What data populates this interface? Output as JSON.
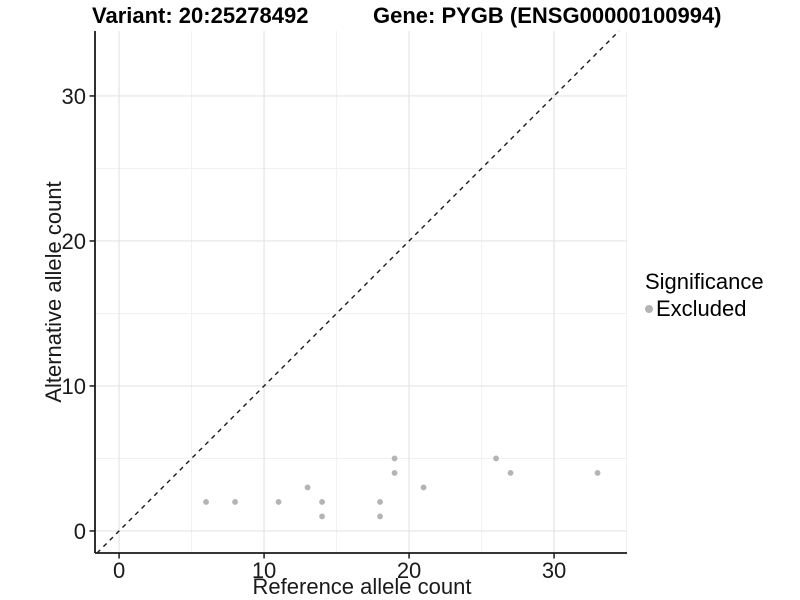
{
  "header": {
    "variant_title": "Variant: 20:25278492",
    "gene_title": "Gene: PYGB (ENSG00000100994)"
  },
  "chart_data": {
    "type": "scatter",
    "title_left": "Variant: 20:25278492",
    "title_right": "Gene: PYGB (ENSG00000100994)",
    "xlabel": "Reference allele count",
    "ylabel": "Alternative allele count",
    "xlim": [
      -1.66,
      35.03
    ],
    "ylim": [
      -1.52,
      34.48
    ],
    "xticks": [
      0,
      10,
      20,
      30
    ],
    "yticks": [
      0,
      10,
      20,
      30
    ],
    "xminor": [
      5,
      15,
      25,
      35
    ],
    "yminor": [
      5,
      15,
      25
    ],
    "grid": true,
    "identity_line": {
      "show": true,
      "style": "dashed",
      "color": "#1a1a1a"
    },
    "series": [
      {
        "name": "Excluded",
        "color": "#b4b4b4",
        "points": [
          [
            6,
            2
          ],
          [
            8,
            2
          ],
          [
            11,
            2
          ],
          [
            13,
            3
          ],
          [
            14,
            1
          ],
          [
            14,
            2
          ],
          [
            18,
            1
          ],
          [
            18,
            2
          ],
          [
            19,
            4
          ],
          [
            19,
            5
          ],
          [
            21,
            3
          ],
          [
            26,
            5
          ],
          [
            27,
            4
          ],
          [
            33,
            4
          ]
        ]
      }
    ],
    "legend": {
      "title": "Significance",
      "position": "right",
      "entries": [
        {
          "label": "Excluded",
          "color": "#b4b4b4"
        }
      ]
    },
    "colors": {
      "axis_line": "#1a1a1a",
      "tick_label": "#1a1a1a",
      "grid_major": "#e4e4e4",
      "grid_minor": "#f1f1f1",
      "point": "#b4b4b4"
    }
  }
}
